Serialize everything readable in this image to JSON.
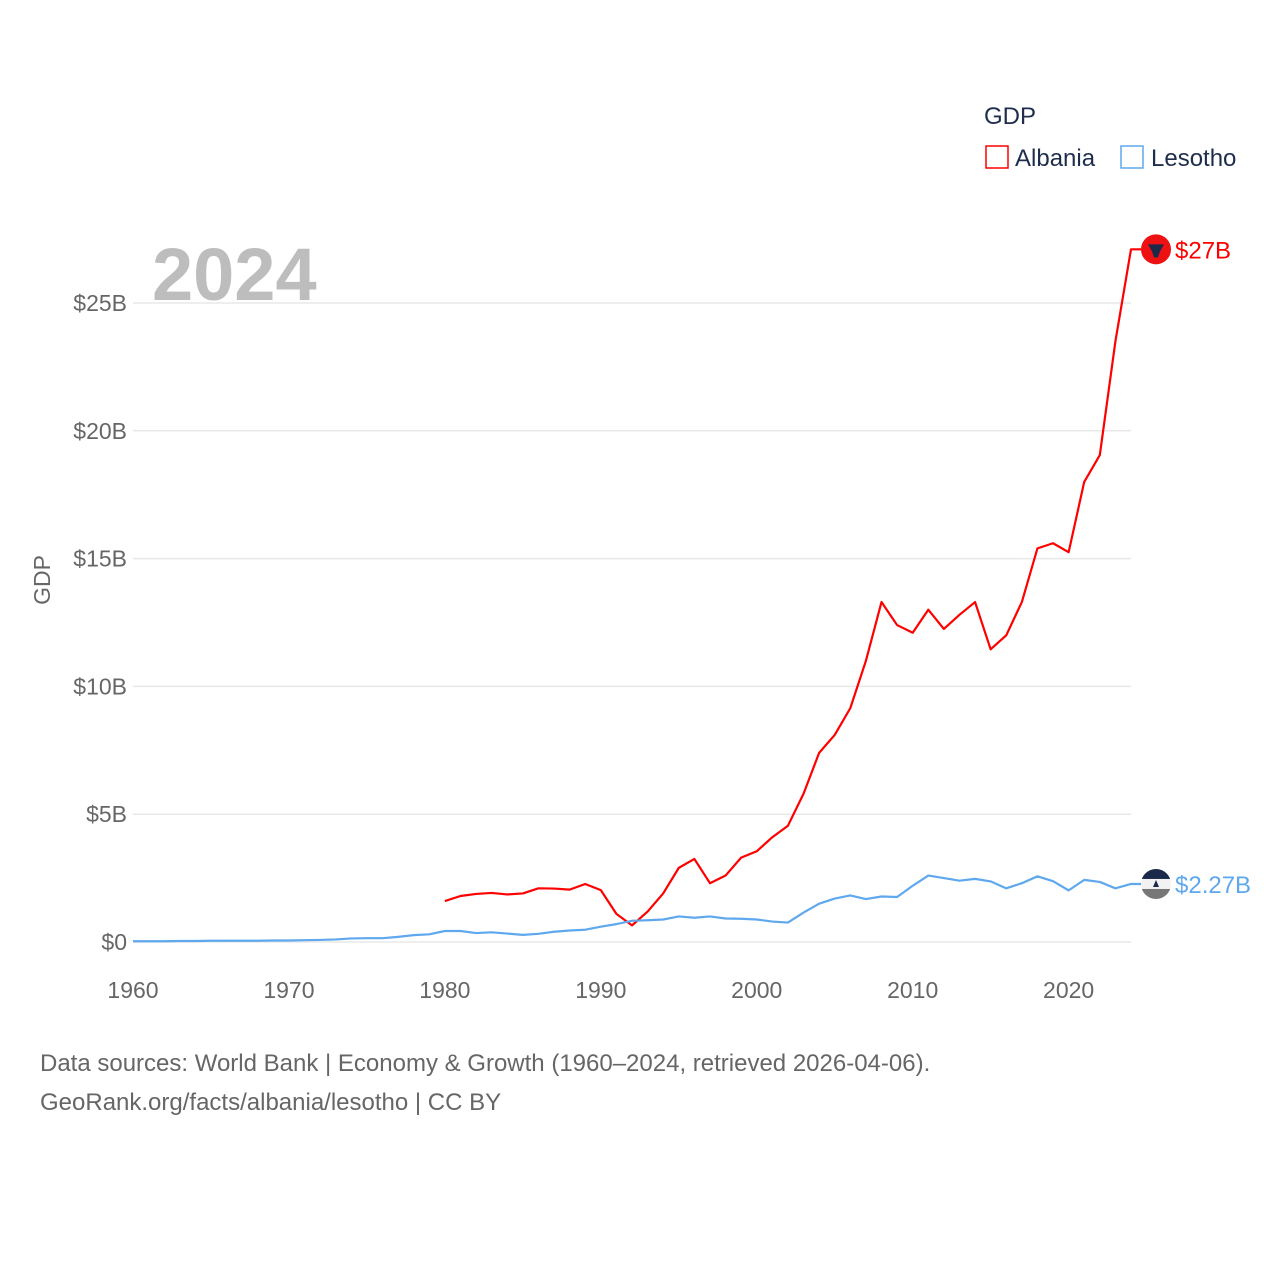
{
  "chart_data": {
    "type": "line",
    "title": "GDP",
    "ylabel": "GDP",
    "xlabel": "",
    "year_label": "2024",
    "xlim": [
      1960,
      2024
    ],
    "ylim": [
      0,
      25
    ],
    "x_ticks": [
      "1960",
      "1970",
      "1980",
      "1990",
      "2000",
      "2010",
      "2020"
    ],
    "y_ticks": [
      {
        "v": 0,
        "label": "$0"
      },
      {
        "v": 5,
        "label": "$5B"
      },
      {
        "v": 10,
        "label": "$10B"
      },
      {
        "v": 15,
        "label": "$15B"
      },
      {
        "v": 20,
        "label": "$20B"
      },
      {
        "v": 25,
        "label": "$25B"
      }
    ],
    "units": "billion USD",
    "grid": true,
    "legend": {
      "title": "GDP",
      "placement": "top-right"
    },
    "series": [
      {
        "name": "Albania",
        "color": "#ff0000",
        "end_label": "$27B",
        "flag": "albania-flag",
        "start_year": 1980,
        "values": [
          1.6,
          1.8,
          1.88,
          1.92,
          1.86,
          1.9,
          2.1,
          2.09,
          2.05,
          2.27,
          2.03,
          1.1,
          0.65,
          1.19,
          1.9,
          2.9,
          3.25,
          2.3,
          2.6,
          3.3,
          3.55,
          4.1,
          4.55,
          5.8,
          7.4,
          8.1,
          9.15,
          11.0,
          13.3,
          12.4,
          12.1,
          13.0,
          12.25,
          12.8,
          13.3,
          11.45,
          12.0,
          13.3,
          15.4,
          15.6,
          15.25,
          18.0,
          19.05,
          23.5,
          27.1
        ]
      },
      {
        "name": "Lesotho",
        "color": "#5fa8ee",
        "end_label": "$2.27B",
        "flag": "lesotho-flag",
        "start_year": 1960,
        "values": [
          0.03,
          0.03,
          0.03,
          0.04,
          0.04,
          0.05,
          0.05,
          0.05,
          0.05,
          0.06,
          0.06,
          0.07,
          0.08,
          0.1,
          0.14,
          0.15,
          0.15,
          0.2,
          0.27,
          0.3,
          0.43,
          0.43,
          0.35,
          0.38,
          0.33,
          0.28,
          0.32,
          0.4,
          0.45,
          0.48,
          0.6,
          0.7,
          0.83,
          0.85,
          0.88,
          1.0,
          0.95,
          1.0,
          0.92,
          0.91,
          0.88,
          0.8,
          0.76,
          1.15,
          1.5,
          1.7,
          1.82,
          1.68,
          1.78,
          1.76,
          2.2,
          2.6,
          2.5,
          2.4,
          2.47,
          2.37,
          2.1,
          2.3,
          2.57,
          2.38,
          2.02,
          2.43,
          2.35,
          2.1,
          2.27
        ]
      }
    ]
  },
  "footer": {
    "line1": "Data sources: World Bank | Economy & Growth (1960–2024, retrieved 2026-04-06).",
    "line2": "GeoRank.org/facts/albania/lesotho | CC BY"
  }
}
